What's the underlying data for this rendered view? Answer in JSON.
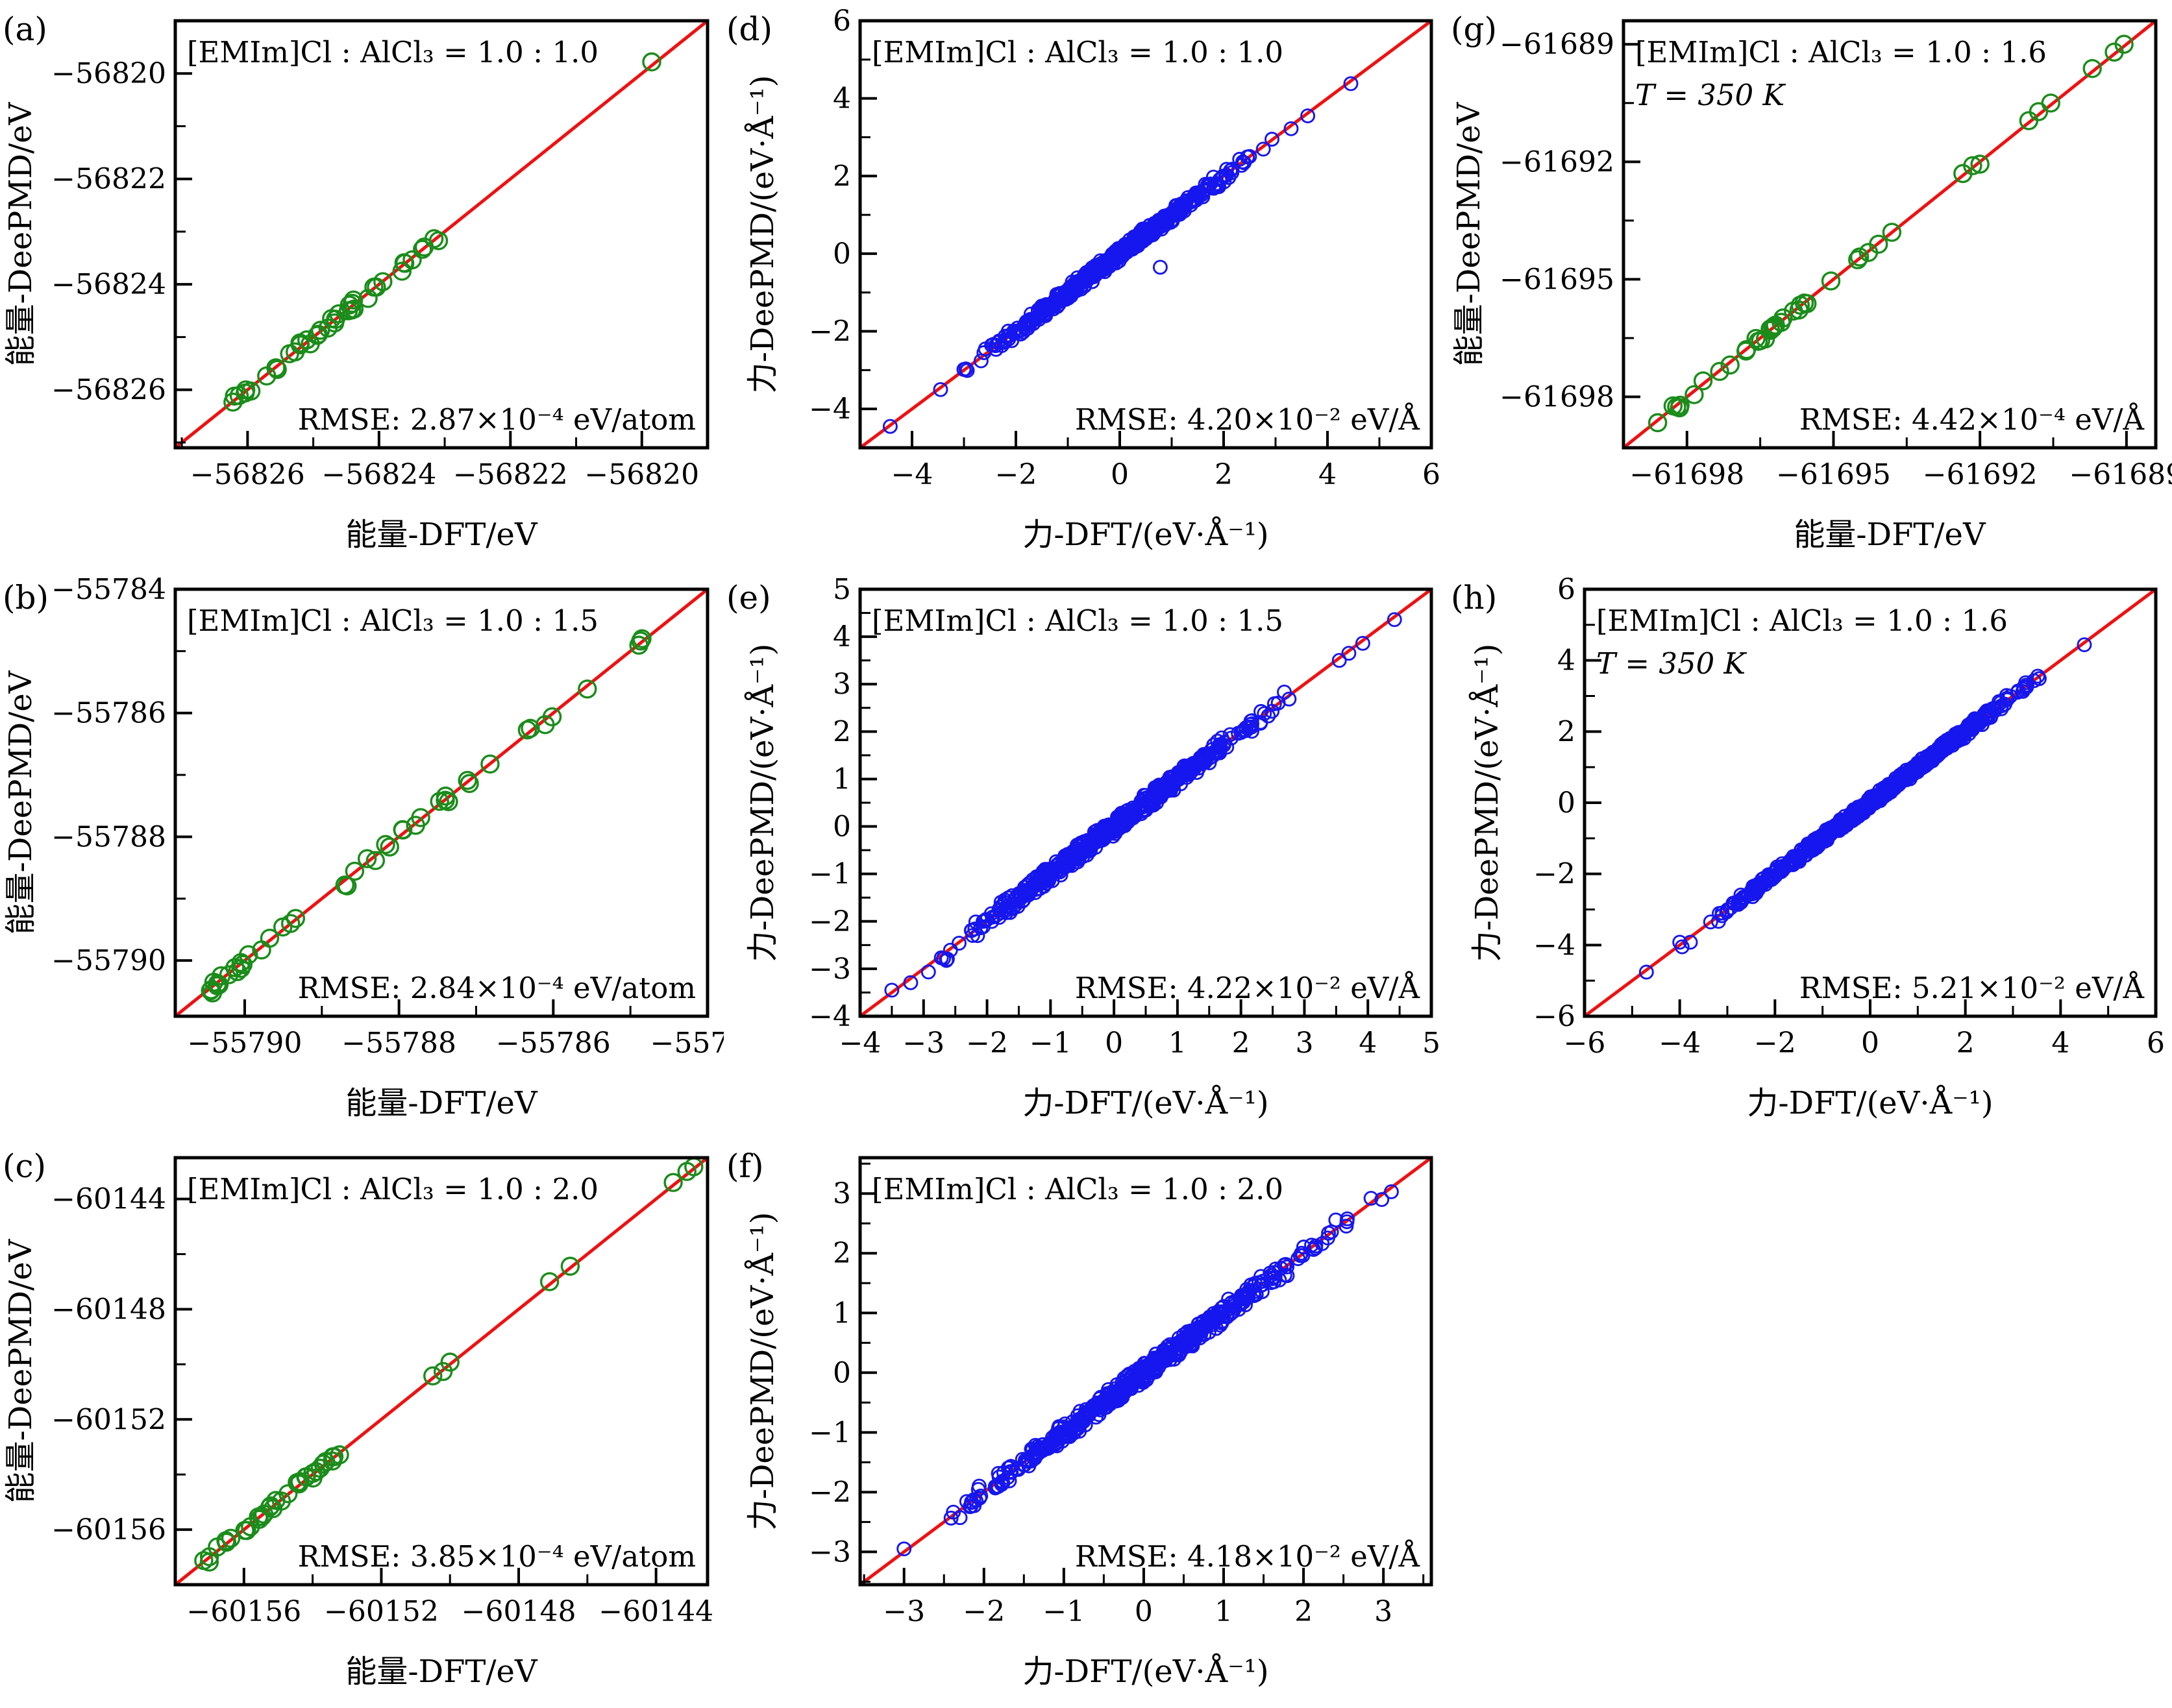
{
  "figure": {
    "background": "#ffffff",
    "colors": {
      "energy_marker": "#1a8c1a",
      "force_marker": "#1616ee",
      "diagonal_line": "#ee1111",
      "axis": "#000000"
    }
  },
  "chart_data": [
    {
      "id": "a",
      "type": "scatter",
      "kind": "energy",
      "letter": "(a)",
      "title": "[EMIm]Cl : AlCl₃ = 1.0 : 1.0",
      "subtitle": null,
      "rmse_label": "RMSE: 2.87×10⁻⁴ eV/atom",
      "xlabel": "能量-DFT/eV",
      "ylabel": "能量-DeePMD/eV",
      "axis_range": [
        -56827.1,
        -56819.0
      ],
      "ticks": [
        -56826,
        -56824,
        -56822,
        -56820
      ],
      "diagonal": "y=x",
      "grid": false,
      "scatter_gen": {
        "seed": 11,
        "count": 40,
        "band": [
          -56826.25,
          -56823.0
        ],
        "sigma": 0.07,
        "skew": 1.3
      },
      "notable_points": [
        [
          -56819.85,
          -56819.78
        ],
        [
          -56826.2,
          -56826.12
        ]
      ]
    },
    {
      "id": "b",
      "type": "scatter",
      "kind": "energy",
      "letter": "(b)",
      "title": "[EMIm]Cl : AlCl₃ = 1.0 : 1.5",
      "subtitle": null,
      "rmse_label": "RMSE: 2.84×10⁻⁴ eV/atom",
      "xlabel": "能量-DFT/eV",
      "ylabel": "能量-DeePMD/eV",
      "axis_range": [
        -55790.9,
        -55784.0
      ],
      "ticks": [
        -55790,
        -55788,
        -55786,
        -55784
      ],
      "diagonal": "y=x",
      "grid": false,
      "scatter_gen": {
        "seed": 22,
        "count": 44,
        "band": [
          -55790.45,
          -55784.85
        ],
        "sigma": 0.07,
        "skew": 1.25
      },
      "notable_points": [
        [
          -55784.85,
          -55784.8
        ],
        [
          -55790.4,
          -55790.35
        ]
      ]
    },
    {
      "id": "c",
      "type": "scatter",
      "kind": "energy",
      "letter": "(c)",
      "title": "[EMIm]Cl : AlCl₃ = 1.0 : 2.0",
      "subtitle": null,
      "rmse_label": "RMSE: 3.85×10⁻⁴ eV/atom",
      "xlabel": "能量-DFT/eV",
      "ylabel": "能量-DeePMD/eV",
      "axis_range": [
        -60158.0,
        -60142.5
      ],
      "ticks": [
        -60156,
        -60152,
        -60148,
        -60144
      ],
      "diagonal": "y=x",
      "grid": false,
      "scatter_gen": {
        "seed": 33,
        "count": 36,
        "band": [
          -60157.2,
          -60153.2
        ],
        "sigma": 0.09,
        "skew": 1.2
      },
      "notable_points": [
        [
          -60150.5,
          -60150.42
        ],
        [
          -60150.2,
          -60150.26
        ],
        [
          -60150.0,
          -60149.92
        ],
        [
          -60147.1,
          -60147.0
        ],
        [
          -60146.5,
          -60146.44
        ],
        [
          -60143.5,
          -60143.4
        ],
        [
          -60143.1,
          -60143.0
        ],
        [
          -60142.9,
          -60142.83
        ]
      ]
    },
    {
      "id": "d",
      "type": "scatter",
      "kind": "force",
      "letter": "(d)",
      "title": "[EMIm]Cl : AlCl₃ = 1.0 : 1.0",
      "subtitle": null,
      "rmse_label": "RMSE: 4.20×10⁻² eV/Å",
      "xlabel": "力-DFT/(eV·Å⁻¹)",
      "ylabel": "力-DeePMD/(eV·Å⁻¹)",
      "axis_range": [
        -5.0,
        6.0
      ],
      "ticks": [
        -4,
        -2,
        0,
        2,
        4,
        6
      ],
      "diagonal": "y=x",
      "grid": false,
      "scatter_gen": {
        "seed": 44,
        "count": 520,
        "band": [
          -3.3,
          3.3
        ],
        "sigma": 0.1
      },
      "notable_points": [
        [
          -4.42,
          -4.45
        ],
        [
          0.78,
          -0.35
        ],
        [
          4.45,
          4.38
        ],
        [
          3.62,
          3.55
        ],
        [
          3.3,
          3.22
        ],
        [
          -3.45,
          -3.5
        ]
      ]
    },
    {
      "id": "e",
      "type": "scatter",
      "kind": "force",
      "letter": "(e)",
      "title": "[EMIm]Cl : AlCl₃ = 1.0 : 1.5",
      "subtitle": null,
      "rmse_label": "RMSE: 4.22×10⁻² eV/Å",
      "xlabel": "力-DFT/(eV·Å⁻¹)",
      "ylabel": "力-DeePMD/(eV·Å⁻¹)",
      "axis_range": [
        -4.0,
        5.0
      ],
      "ticks": [
        -4,
        -3,
        -2,
        -1,
        0,
        1,
        2,
        3,
        4,
        5
      ],
      "diagonal": "y=x",
      "grid": false,
      "scatter_gen": {
        "seed": 55,
        "count": 560,
        "band": [
          -3.45,
          3.35
        ],
        "sigma": 0.1
      },
      "notable_points": [
        [
          4.42,
          4.36
        ],
        [
          3.92,
          3.86
        ],
        [
          3.7,
          3.65
        ],
        [
          3.55,
          3.5
        ],
        [
          -3.5,
          -3.45
        ]
      ]
    },
    {
      "id": "f",
      "type": "scatter",
      "kind": "force",
      "letter": "(f)",
      "title": "[EMIm]Cl : AlCl₃ = 1.0 : 2.0",
      "subtitle": null,
      "rmse_label": "RMSE: 4.18×10⁻² eV/Å",
      "xlabel": "力-DFT/(eV·Å⁻¹)",
      "ylabel": "力-DeePMD/(eV·Å⁻¹)",
      "axis_range": [
        -3.55,
        3.6
      ],
      "ticks": [
        -3,
        -2,
        -1,
        0,
        1,
        2,
        3
      ],
      "diagonal": "y=x",
      "grid": false,
      "scatter_gen": {
        "seed": 66,
        "count": 520,
        "band": [
          -2.95,
          2.95
        ],
        "sigma": 0.09
      },
      "notable_points": [
        [
          3.1,
          3.03
        ],
        [
          2.98,
          2.9
        ],
        [
          -3.0,
          -2.95
        ]
      ]
    },
    {
      "id": "g",
      "type": "scatter",
      "kind": "energy",
      "letter": "(g)",
      "title": "[EMIm]Cl : AlCl₃ = 1.0 : 1.6",
      "subtitle": "T = 350 K",
      "rmse_label": "RMSE: 4.42×10⁻⁴ eV/Å",
      "xlabel": "能量-DFT/eV",
      "ylabel": "能量-DeePMD/eV",
      "axis_range": [
        -61699.3,
        -61688.4
      ],
      "ticks": [
        -61698,
        -61695,
        -61692,
        -61689
      ],
      "diagonal": "y=x",
      "grid": false,
      "scatter_gen": {
        "seed": 77,
        "count": 32,
        "band": [
          -61698.3,
          -61693.4
        ],
        "sigma": 0.08,
        "skew": 1.2
      },
      "notable_points": [
        [
          -61698.6,
          -61698.66
        ],
        [
          -61692.35,
          -61692.3
        ],
        [
          -61692.15,
          -61692.1
        ],
        [
          -61692.0,
          -61692.06
        ],
        [
          -61691.0,
          -61690.95
        ],
        [
          -61690.8,
          -61690.72
        ],
        [
          -61690.55,
          -61690.5
        ],
        [
          -61689.7,
          -61689.62
        ],
        [
          -61689.25,
          -61689.2
        ],
        [
          -61689.05,
          -61689.0
        ]
      ]
    },
    {
      "id": "h",
      "type": "scatter",
      "kind": "force",
      "letter": "(h)",
      "title": "[EMIm]Cl : AlCl₃ = 1.0 : 1.6",
      "subtitle": "T = 350 K",
      "rmse_label": "RMSE: 5.21×10⁻² eV/Å",
      "xlabel": "力-DFT/(eV·Å⁻¹)",
      "ylabel": "力-DeePMD/(eV·Å⁻¹)",
      "axis_range": [
        -6.0,
        6.0
      ],
      "ticks": [
        -6,
        -4,
        -2,
        0,
        2,
        4,
        6
      ],
      "diagonal": "y=x",
      "grid": false,
      "scatter_gen": {
        "seed": 88,
        "count": 660,
        "band": [
          -4.15,
          4.45
        ],
        "sigma": 0.09
      },
      "notable_points": [
        [
          -4.7,
          -4.76
        ],
        [
          4.5,
          4.44
        ],
        [
          -4.0,
          -3.92
        ],
        [
          -3.95,
          -4.05
        ]
      ]
    }
  ]
}
